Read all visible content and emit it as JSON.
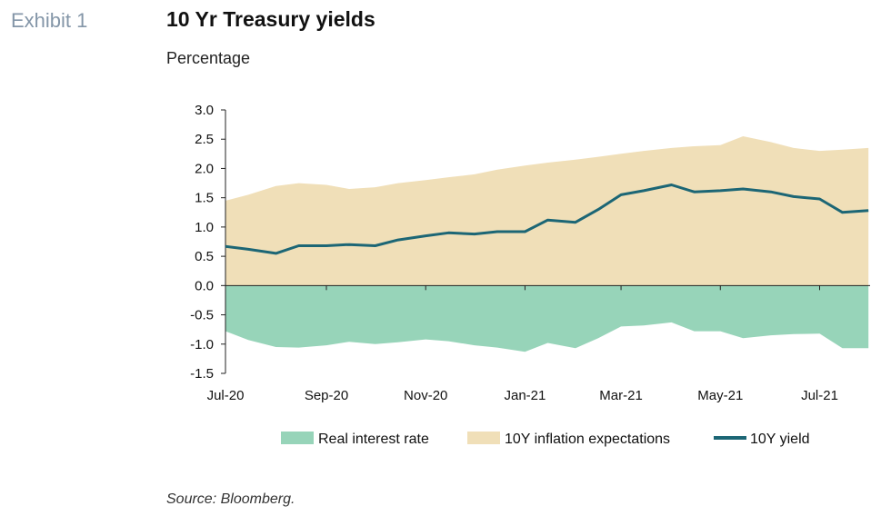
{
  "exhibit": "Exhibit 1",
  "title": "10 Yr Treasury yields",
  "subtitle": "Percentage",
  "source": "Source: Bloomberg.",
  "colors": {
    "real": "#97d4b9",
    "inflation": "#f0dfb8",
    "yield": "#1c6675"
  },
  "chart_data": {
    "type": "area",
    "ylim": [
      -1.5,
      3.0
    ],
    "yticks": [
      "3.0",
      "2.5",
      "2.0",
      "1.5",
      "1.0",
      "0.5",
      "0.0",
      "-0.5",
      "-1.0",
      "-1.5"
    ],
    "ytick_values": [
      3.0,
      2.5,
      2.0,
      1.5,
      1.0,
      0.5,
      0.0,
      -0.5,
      -1.0,
      -1.5
    ],
    "xlim": [
      "2020-07-01",
      "2021-08-01"
    ],
    "xticks": [
      {
        "date": "2020-07-01",
        "label": "Jul-20"
      },
      {
        "date": "2020-09-01",
        "label": "Sep-20"
      },
      {
        "date": "2020-11-01",
        "label": "Nov-20"
      },
      {
        "date": "2021-01-01",
        "label": "Jan-21"
      },
      {
        "date": "2021-03-01",
        "label": "Mar-21"
      },
      {
        "date": "2021-05-01",
        "label": "May-21"
      },
      {
        "date": "2021-07-01",
        "label": "Jul-21"
      }
    ],
    "legend": [
      "Real interest rate",
      "10Y inflation expectations",
      "10Y yield"
    ],
    "legend_position": "bottom",
    "grid": false,
    "x": [
      "2020-07-01",
      "2020-07-15",
      "2020-08-01",
      "2020-08-15",
      "2020-09-01",
      "2020-09-15",
      "2020-10-01",
      "2020-10-15",
      "2020-11-01",
      "2020-11-15",
      "2020-12-01",
      "2020-12-15",
      "2021-01-01",
      "2021-01-15",
      "2021-02-01",
      "2021-02-15",
      "2021-03-01",
      "2021-03-15",
      "2021-04-01",
      "2021-04-15",
      "2021-05-01",
      "2021-05-15",
      "2021-06-01",
      "2021-06-15",
      "2021-07-01",
      "2021-07-15",
      "2021-07-31"
    ],
    "series": [
      {
        "name": "10Y yield",
        "values": [
          0.67,
          0.62,
          0.55,
          0.68,
          0.68,
          0.7,
          0.68,
          0.78,
          0.85,
          0.9,
          0.88,
          0.92,
          0.92,
          1.12,
          1.08,
          1.3,
          1.55,
          1.62,
          1.72,
          1.6,
          1.62,
          1.65,
          1.6,
          1.52,
          1.48,
          1.25,
          1.28
        ]
      },
      {
        "name": "10Y inflation expectations",
        "values": [
          1.45,
          1.55,
          1.7,
          1.75,
          1.72,
          1.65,
          1.68,
          1.75,
          1.8,
          1.85,
          1.9,
          1.98,
          2.05,
          2.1,
          2.15,
          2.2,
          2.25,
          2.3,
          2.35,
          2.38,
          2.4,
          2.55,
          2.45,
          2.35,
          2.3,
          2.32,
          2.35
        ]
      },
      {
        "name": "Real interest rate",
        "values": [
          -0.78,
          -0.93,
          -1.05,
          -1.06,
          -1.02,
          -0.96,
          -1.0,
          -0.97,
          -0.92,
          -0.95,
          -1.02,
          -1.06,
          -1.13,
          -0.98,
          -1.07,
          -0.9,
          -0.7,
          -0.68,
          -0.63,
          -0.78,
          -0.78,
          -0.9,
          -0.85,
          -0.83,
          -0.82,
          -1.07,
          -1.07
        ]
      }
    ]
  }
}
